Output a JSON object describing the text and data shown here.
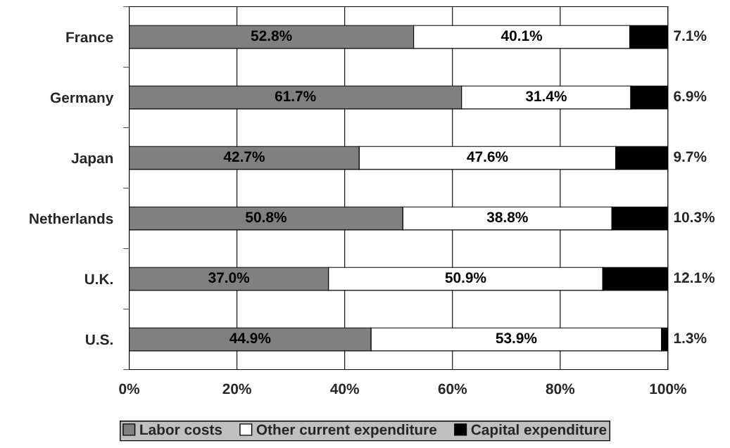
{
  "chart_data": {
    "type": "bar",
    "orientation": "horizontal",
    "stacked": true,
    "categories": [
      "France",
      "Germany",
      "Japan",
      "Netherlands",
      "U.K.",
      "U.S."
    ],
    "series": [
      {
        "name": "Labor costs",
        "color": "#808080",
        "values": [
          52.8,
          61.7,
          42.7,
          50.8,
          37.0,
          44.9
        ],
        "value_labels": [
          "52.8%",
          "61.7%",
          "42.7%",
          "50.8%",
          "37.0%",
          "44.9%"
        ]
      },
      {
        "name": "Other current expenditure",
        "color": "#ffffff",
        "values": [
          40.1,
          31.4,
          47.6,
          38.8,
          50.9,
          53.9
        ],
        "value_labels": [
          "40.1%",
          "31.4%",
          "47.6%",
          "38.8%",
          "50.9%",
          "53.9%"
        ]
      },
      {
        "name": "Capital expenditure",
        "color": "#000000",
        "values": [
          7.1,
          6.9,
          9.7,
          10.3,
          12.1,
          1.3
        ],
        "value_labels": [
          "7.1%",
          "6.9%",
          "9.7%",
          "10.3%",
          "12.1%",
          "1.3%"
        ]
      }
    ],
    "xlim": [
      0,
      100
    ],
    "xticks": [
      {
        "value": 0,
        "label": "0%"
      },
      {
        "value": 20,
        "label": "20%"
      },
      {
        "value": 40,
        "label": "40%"
      },
      {
        "value": 60,
        "label": "60%"
      },
      {
        "value": 80,
        "label": "80%"
      },
      {
        "value": 100,
        "label": "100%"
      }
    ],
    "grid": "x",
    "legend": "bottom"
  }
}
